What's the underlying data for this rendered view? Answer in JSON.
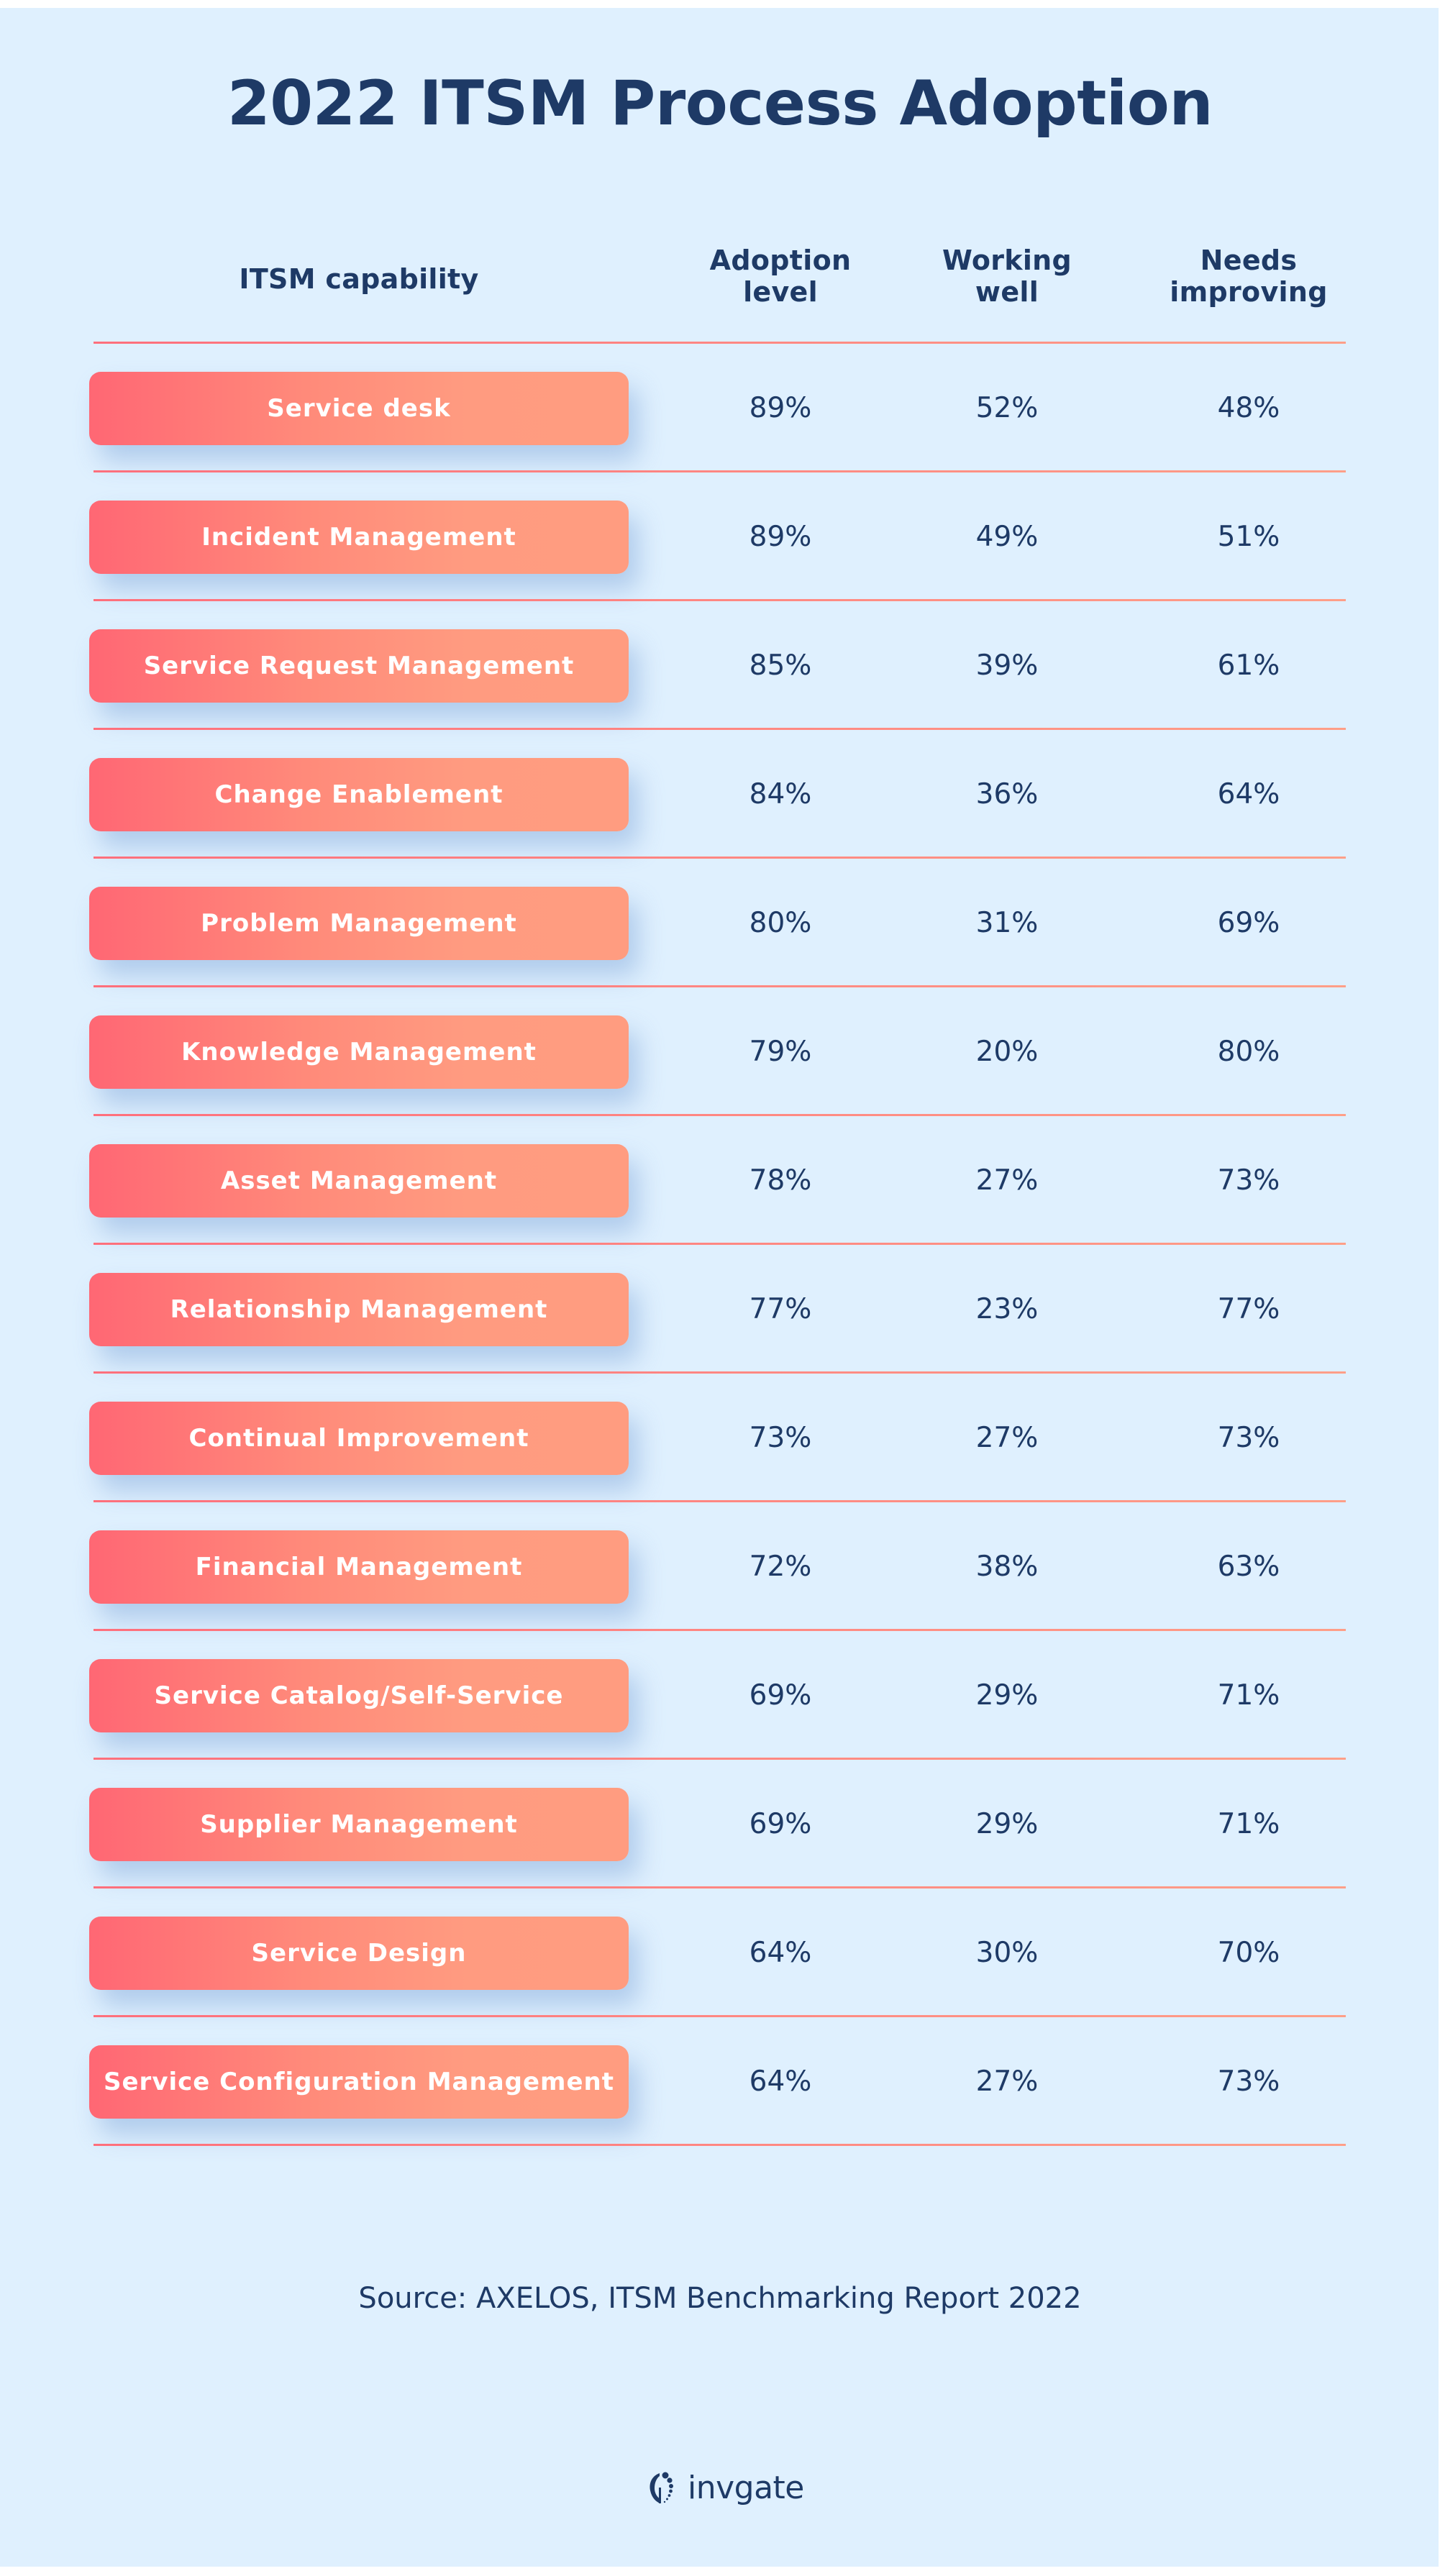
{
  "title": "2022 ITSM Process Adoption",
  "headers": {
    "capability": "ITSM capability",
    "adoption": [
      "Adoption",
      "level"
    ],
    "working": [
      "Working",
      "well"
    ],
    "needs": [
      "Needs",
      "improving"
    ]
  },
  "rows": [
    {
      "capability": "Service desk",
      "adoption": "89%",
      "working": "52%",
      "needs": "48%"
    },
    {
      "capability": "Incident Management",
      "adoption": "89%",
      "working": "49%",
      "needs": "51%"
    },
    {
      "capability": "Service Request Management",
      "adoption": "85%",
      "working": "39%",
      "needs": "61%"
    },
    {
      "capability": "Change Enablement",
      "adoption": "84%",
      "working": "36%",
      "needs": "64%"
    },
    {
      "capability": "Problem Management",
      "adoption": "80%",
      "working": "31%",
      "needs": "69%"
    },
    {
      "capability": "Knowledge Management",
      "adoption": "79%",
      "working": "20%",
      "needs": "80%"
    },
    {
      "capability": "Asset Management",
      "adoption": "78%",
      "working": "27%",
      "needs": "73%"
    },
    {
      "capability": "Relationship Management",
      "adoption": "77%",
      "working": "23%",
      "needs": "77%"
    },
    {
      "capability": "Continual Improvement",
      "adoption": "73%",
      "working": "27%",
      "needs": "73%"
    },
    {
      "capability": "Financial Management",
      "adoption": "72%",
      "working": "38%",
      "needs": "63%"
    },
    {
      "capability": "Service Catalog/Self-Service",
      "adoption": "69%",
      "working": "29%",
      "needs": "71%"
    },
    {
      "capability": "Supplier Management",
      "adoption": "69%",
      "working": "29%",
      "needs": "71%"
    },
    {
      "capability": "Service Design",
      "adoption": "64%",
      "working": "30%",
      "needs": "70%"
    },
    {
      "capability": "Service Configuration Management",
      "adoption": "64%",
      "working": "27%",
      "needs": "73%"
    }
  ],
  "source": "Source: AXELOS, ITSM Benchmarking Report 2022",
  "logo": {
    "icon": "invgate-logo-icon",
    "text": "invgate"
  },
  "colors": {
    "background": "#dff0fe",
    "text": "#1e3a66",
    "pill_start": "#ff6774",
    "pill_end": "#ff9c80",
    "divider_start": "#ff6f7c",
    "divider_end": "#ff9f88"
  },
  "chart_data": {
    "type": "table",
    "title": "2022 ITSM Process Adoption",
    "columns": [
      "ITSM capability",
      "Adoption level",
      "Working well",
      "Needs improving"
    ],
    "categories": [
      "Service desk",
      "Incident Management",
      "Service Request Management",
      "Change Enablement",
      "Problem Management",
      "Knowledge Management",
      "Asset Management",
      "Relationship Management",
      "Continual Improvement",
      "Financial Management",
      "Service Catalog/Self-Service",
      "Supplier Management",
      "Service Design",
      "Service Configuration Management"
    ],
    "series": [
      {
        "name": "Adoption level",
        "values": [
          89,
          89,
          85,
          84,
          80,
          79,
          78,
          77,
          73,
          72,
          69,
          69,
          64,
          64
        ]
      },
      {
        "name": "Working well",
        "values": [
          52,
          49,
          39,
          36,
          31,
          20,
          27,
          23,
          27,
          38,
          29,
          29,
          30,
          27
        ]
      },
      {
        "name": "Needs improving",
        "values": [
          48,
          51,
          61,
          64,
          69,
          80,
          73,
          77,
          73,
          63,
          71,
          71,
          70,
          73
        ]
      }
    ],
    "unit": "%",
    "source": "Source: AXELOS, ITSM Benchmarking Report 2022"
  }
}
